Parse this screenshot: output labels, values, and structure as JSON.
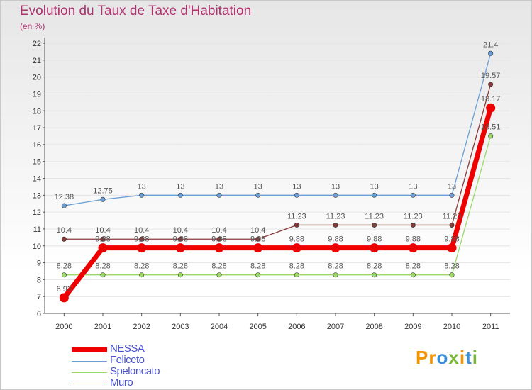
{
  "title": "Evolution du Taux de Taxe d'Habitation",
  "unit": "(en %)",
  "brand": {
    "p1": "Pr",
    "o": "o",
    "x": "x",
    "i1": "i",
    "t": "t",
    "i2": "i"
  },
  "chart_data": {
    "type": "line",
    "title": "Evolution du Taux de Taxe d'Habitation",
    "ylabel": "(en %)",
    "ylim": [
      6,
      22
    ],
    "yticks": [
      6,
      7,
      8,
      9,
      10,
      11,
      12,
      13,
      14,
      15,
      16,
      17,
      18,
      19,
      20,
      21,
      22
    ],
    "categories": [
      "2000",
      "2001",
      "2002",
      "2003",
      "2004",
      "2005",
      "2006",
      "2007",
      "2008",
      "2009",
      "2010",
      "2011"
    ],
    "series": [
      {
        "name": "NESSA",
        "color": "#ee0000",
        "values": [
          6.93,
          9.88,
          9.88,
          9.88,
          9.88,
          9.88,
          9.88,
          9.88,
          9.88,
          9.88,
          9.88,
          18.17
        ],
        "labels": [
          "6.93",
          "9.88",
          "9.88",
          "9.88",
          "9.88",
          "9.88",
          "9.88",
          "9.88",
          "9.88",
          "9.88",
          "9.88",
          "18.17"
        ]
      },
      {
        "name": "Feliceto",
        "color": "#6b9fd6",
        "values": [
          12.38,
          12.75,
          13,
          13,
          13,
          13,
          13,
          13,
          13,
          13,
          13,
          21.4
        ],
        "labels": [
          "12.38",
          "12.75",
          "13",
          "13",
          "13",
          "13",
          "13",
          "13",
          "13",
          "13",
          "13",
          "21.4"
        ]
      },
      {
        "name": "Speloncato",
        "color": "#9ad96a",
        "values": [
          8.28,
          8.28,
          8.28,
          8.28,
          8.28,
          8.28,
          8.28,
          8.28,
          8.28,
          8.28,
          8.28,
          16.51
        ],
        "labels": [
          "8.28",
          "8.28",
          "8.28",
          "8.28",
          "8.28",
          "8.28",
          "8.28",
          "8.28",
          "8.28",
          "8.28",
          "8.28",
          "16.51"
        ]
      },
      {
        "name": "Muro",
        "color": "#8a3a3a",
        "values": [
          10.4,
          10.4,
          10.4,
          10.4,
          10.4,
          10.4,
          11.23,
          11.23,
          11.23,
          11.23,
          11.23,
          19.57
        ],
        "labels": [
          "10.4",
          "10.4",
          "10.4",
          "10.4",
          "10.4",
          "10.4",
          "11.23",
          "11.23",
          "11.23",
          "11.23",
          "11.23",
          "19.57"
        ]
      }
    ]
  }
}
